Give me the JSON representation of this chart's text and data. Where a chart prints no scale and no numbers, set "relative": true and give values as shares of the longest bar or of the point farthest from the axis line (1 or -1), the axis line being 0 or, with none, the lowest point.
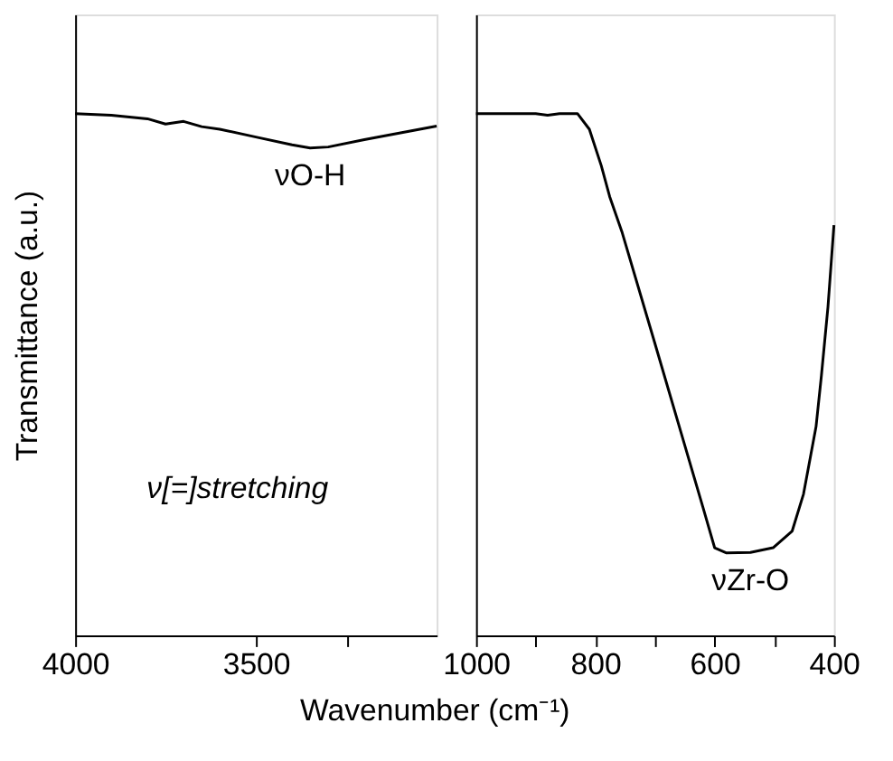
{
  "chart_data": [
    {
      "type": "line",
      "relative": true,
      "ylabel": "Transmittance (a.u.)",
      "xlabel": "Wavenumber (cm⁻¹)",
      "xlim": [
        4000,
        3000
      ],
      "xticks": [
        4000,
        3500,
        {
          "value": 3250,
          "label": null
        }
      ],
      "grid": false,
      "series": [
        {
          "color": "#000000",
          "x": [
            4000,
            3900,
            3800,
            3750,
            3700,
            3650,
            3600,
            3500,
            3400,
            3350,
            3300,
            3200,
            3100,
            3000
          ],
          "values": [
            1.0,
            0.997,
            0.99,
            0.98,
            0.985,
            0.975,
            0.97,
            0.955,
            0.94,
            0.934,
            0.936,
            0.95,
            0.963,
            0.976
          ]
        }
      ],
      "annotations": [
        {
          "text": "νO-H",
          "x": 3350,
          "y": 0.934
        },
        "ν[=]stretching"
      ]
    },
    {
      "type": "line",
      "relative": true,
      "xlim": [
        1000,
        400
      ],
      "xticks": [
        1000,
        {
          "value": 900,
          "label": null
        },
        800,
        {
          "value": 700,
          "label": null
        },
        600,
        {
          "value": 500,
          "label": null
        },
        400
      ],
      "grid": false,
      "series": [
        {
          "color": "#000000",
          "x": [
            1000,
            900,
            880,
            860,
            830,
            810,
            790,
            776,
            755,
            700,
            650,
            620,
            600,
            580,
            540,
            502,
            470,
            451,
            430,
            421,
            410,
            400
          ],
          "values": [
            1.0,
            1.0,
            0.997,
            1.0,
            1.0,
            0.97,
            0.9,
            0.841,
            0.772,
            0.559,
            0.364,
            0.247,
            0.168,
            0.158,
            0.159,
            0.168,
            0.2,
            0.271,
            0.4,
            0.498,
            0.63,
            0.786
          ]
        }
      ],
      "annotations": [
        {
          "text": "νZr-O",
          "x": 540,
          "y": 0.159
        }
      ]
    }
  ]
}
